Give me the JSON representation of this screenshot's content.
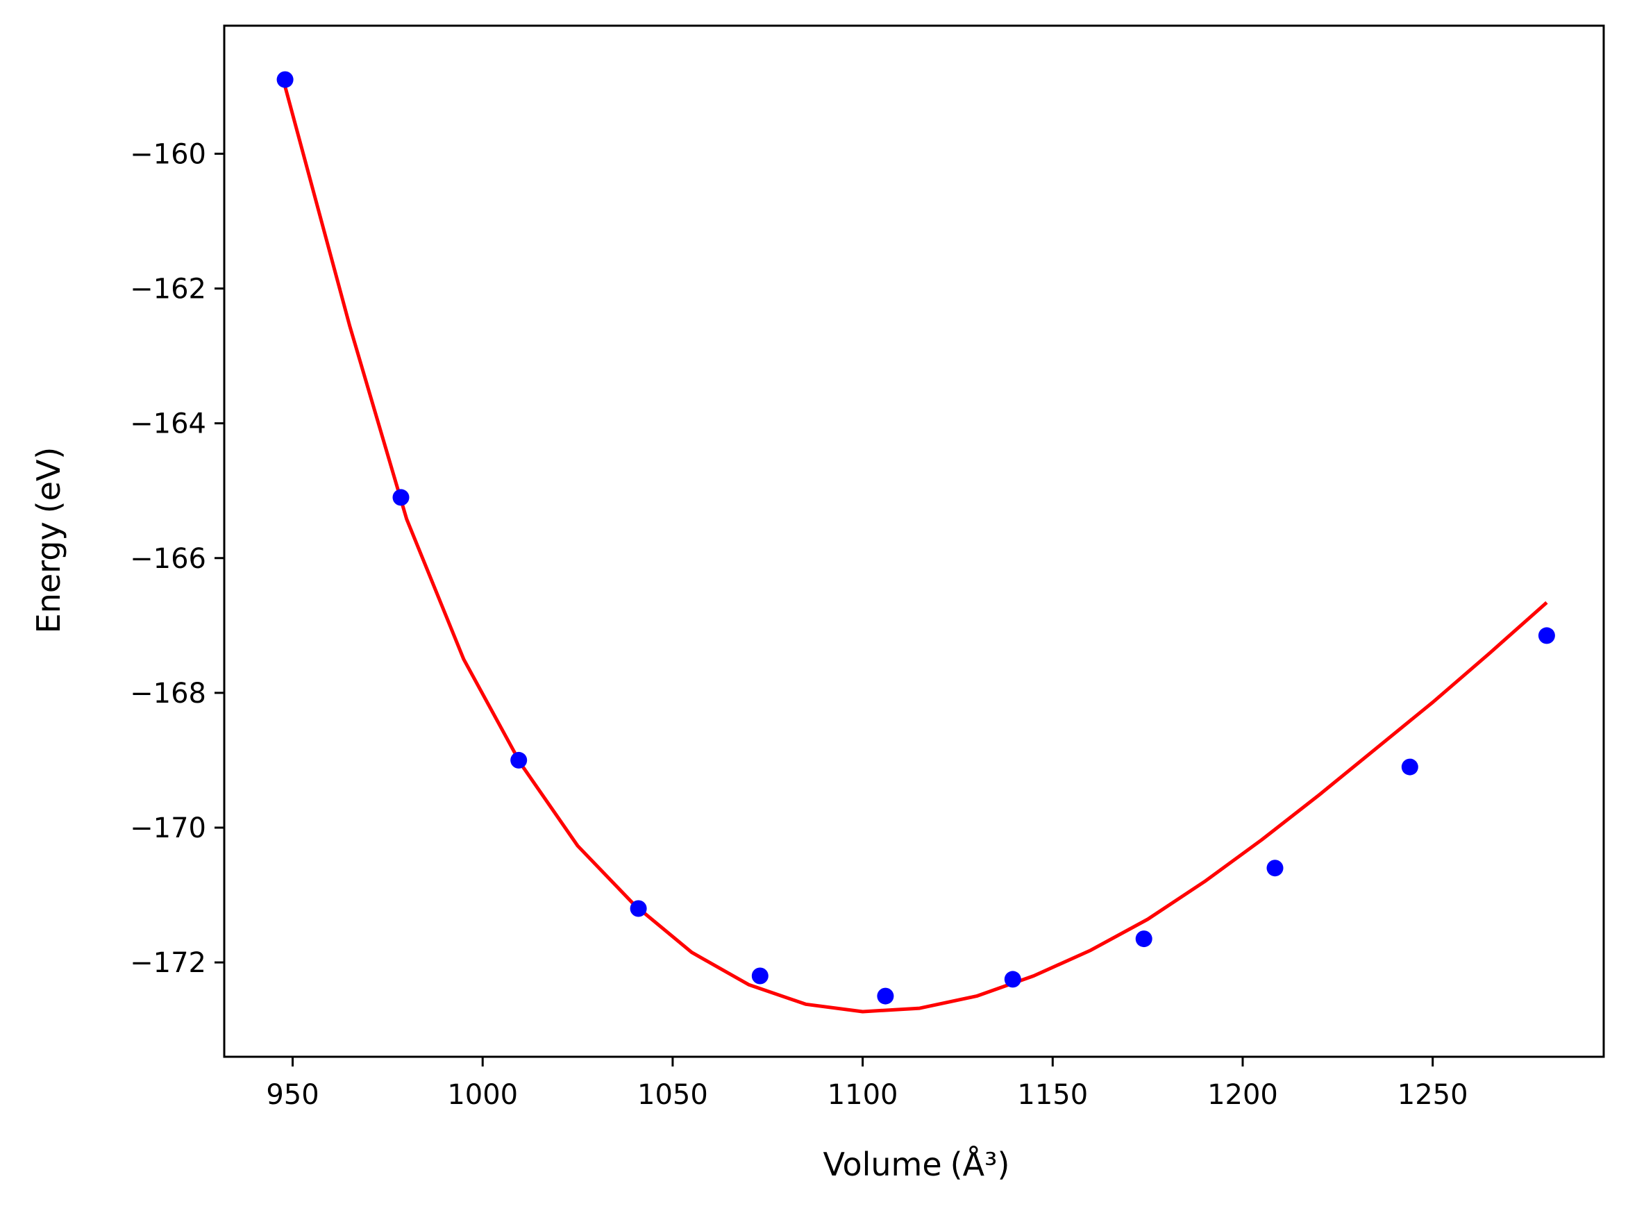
{
  "chart_data": {
    "type": "scatter",
    "title": "",
    "xlabel": "Volume",
    "xlabel_unit": "(Å³)",
    "ylabel": "Energy",
    "ylabel_unit": "(eV)",
    "xlim": [
      932,
      1295
    ],
    "ylim": [
      -173.4,
      -158.1
    ],
    "xticks": [
      950,
      1000,
      1050,
      1100,
      1150,
      1200,
      1250
    ],
    "yticks": [
      -160,
      -162,
      -164,
      -166,
      -168,
      -170,
      -172
    ],
    "grid": false,
    "legend": "none",
    "series": [
      {
        "kind": "points",
        "color": "#0000ff",
        "x": [
          948,
          978.5,
          1009.5,
          1041,
          1073,
          1106,
          1139.5,
          1174,
          1208.5,
          1244,
          1280
        ],
        "y": [
          -158.9,
          -165.1,
          -169.0,
          -171.2,
          -172.2,
          -172.5,
          -172.25,
          -171.65,
          -170.6,
          -169.1,
          -167.15
        ]
      },
      {
        "kind": "fit-line",
        "color": "#ff0000",
        "x": [
          948,
          965,
          980,
          995,
          1010,
          1025,
          1040,
          1055,
          1070,
          1085,
          1100,
          1115,
          1130,
          1145,
          1160,
          1175,
          1190,
          1205,
          1220,
          1235,
          1250,
          1265,
          1280
        ],
        "y": [
          -159.0,
          -162.55,
          -165.42,
          -167.5,
          -169.05,
          -170.27,
          -171.15,
          -171.85,
          -172.33,
          -172.62,
          -172.73,
          -172.68,
          -172.5,
          -172.2,
          -171.82,
          -171.36,
          -170.8,
          -170.18,
          -169.52,
          -168.83,
          -168.14,
          -167.41,
          -166.66
        ]
      }
    ]
  }
}
